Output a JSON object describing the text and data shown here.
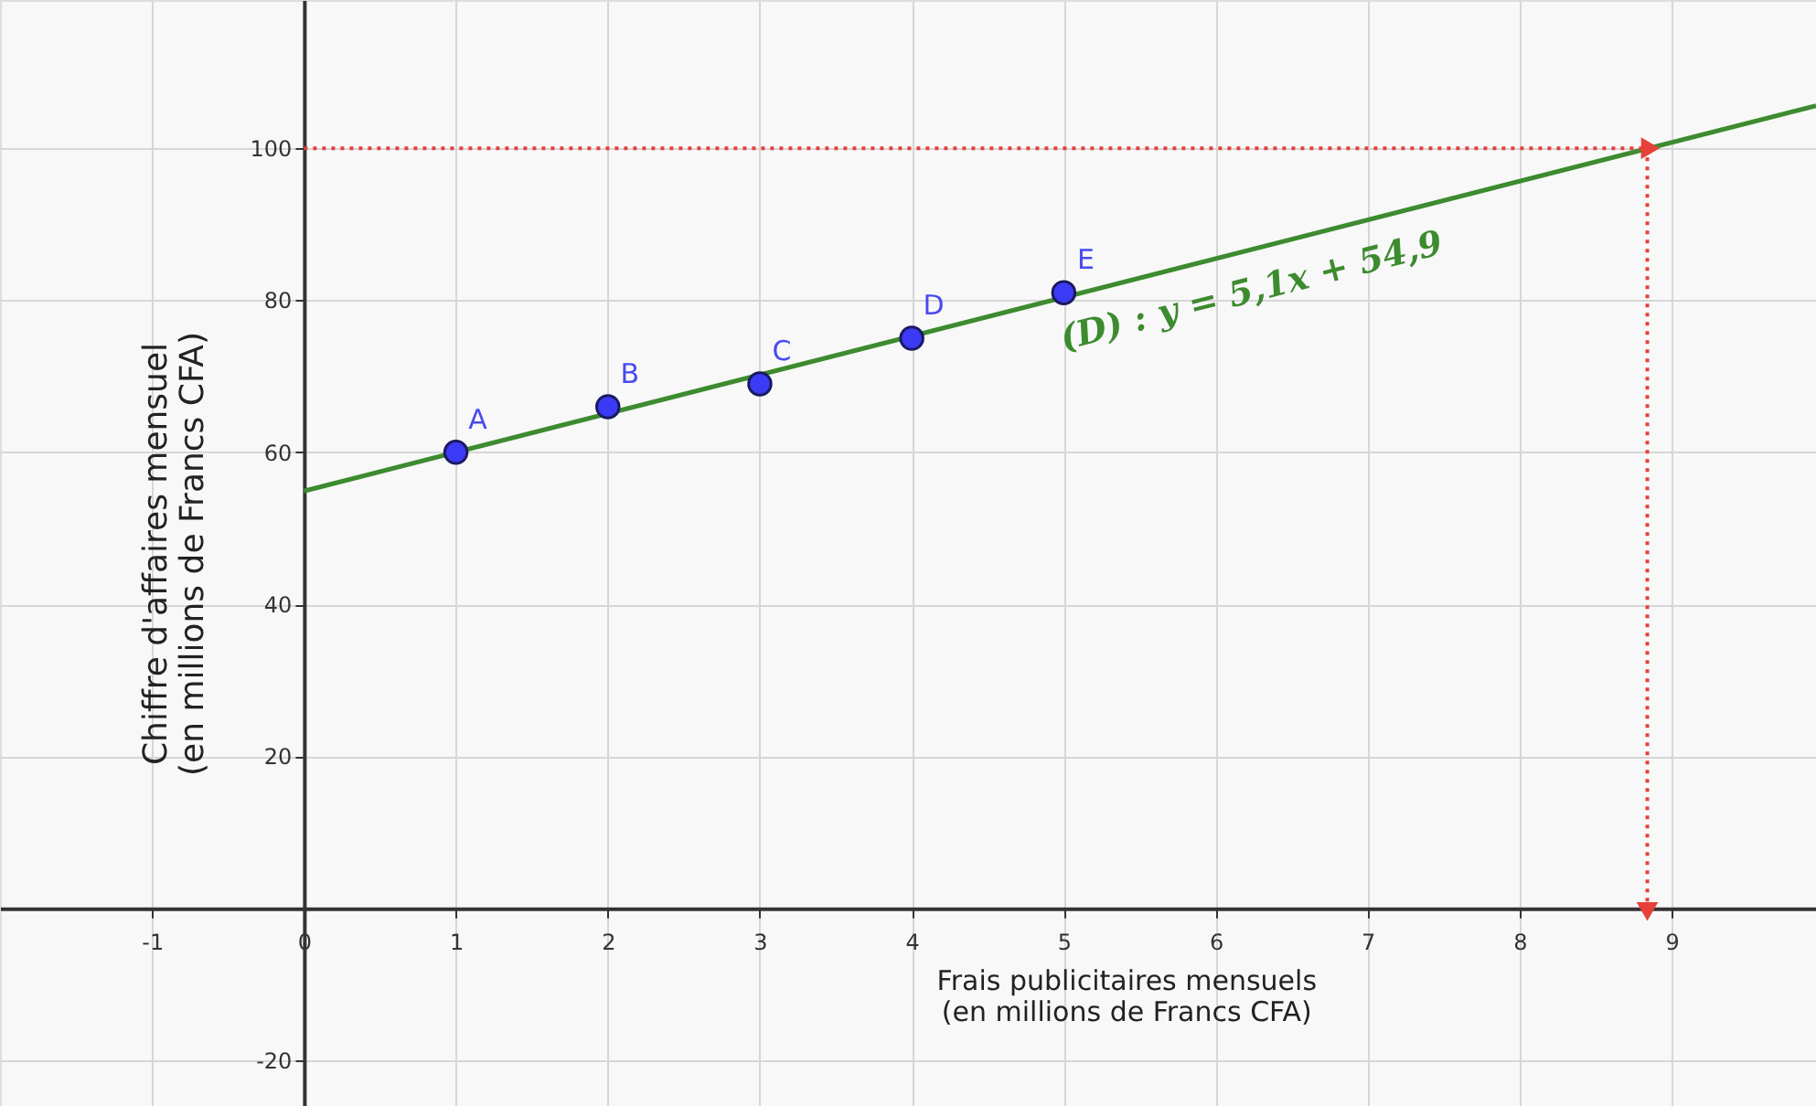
{
  "chart_data": {
    "type": "scatter",
    "xlabel": "Frais publicitaires mensuels\n(en millions de Francs CFA)",
    "ylabel": "Chiffre d'affaires mensuel\n(en millions de Francs CFA)",
    "xlim": [
      -2,
      9.95
    ],
    "ylim": [
      -26,
      119.5
    ],
    "xticks": [
      -1,
      0,
      1,
      2,
      3,
      4,
      5,
      6,
      7,
      8,
      9
    ],
    "yticks": [
      -20,
      {
        "value": 0,
        "label": null
      },
      20,
      40,
      60,
      80,
      100
    ],
    "grid": true,
    "series": [
      {
        "color": "#3b3bf5",
        "marker": "circle",
        "x": [
          1,
          2,
          3,
          4,
          5
        ],
        "values": [
          60,
          66,
          69,
          75,
          81
        ]
      },
      {
        "type": "line",
        "color": "#3d8b2f",
        "line_style": "solid",
        "x": [
          0,
          9.95
        ],
        "values": [
          54.9,
          105.6
        ]
      },
      {
        "type": "line",
        "color": "#e5403a",
        "line_style": "dotted",
        "x": [
          0,
          8.84
        ],
        "values": [
          100,
          100
        ]
      },
      {
        "type": "line",
        "color": "#e5403a",
        "line_style": "dotted",
        "x": [
          8.84,
          8.84
        ],
        "values": [
          100,
          0
        ]
      }
    ],
    "annotations": [
      {
        "text": "A",
        "x": 1,
        "y": 60
      },
      {
        "text": "B",
        "x": 2,
        "y": 66
      },
      {
        "text": "C",
        "x": 3,
        "y": 69
      },
      {
        "text": "D",
        "x": 4,
        "y": 75
      },
      {
        "text": "E",
        "x": 5,
        "y": 81
      },
      "(D) : y = 5,1x + 54,9"
    ]
  }
}
